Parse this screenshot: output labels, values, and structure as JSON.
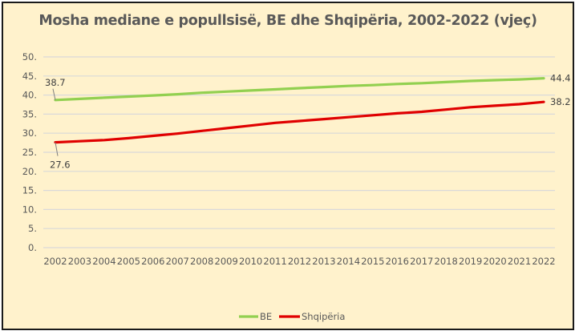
{
  "chart_data": {
    "type": "line",
    "title": "Mosha mediane e popullsisë, BE dhe Shqipëria, 2002-2022 (vjeç)",
    "xlabel": "",
    "ylabel": "",
    "ylim": [
      0,
      50
    ],
    "yticks": [
      0,
      5,
      10,
      15,
      20,
      25,
      30,
      35,
      40,
      45,
      50
    ],
    "ytick_labels": [
      "0.",
      "5.",
      "10.",
      "15.",
      "20.",
      "25.",
      "30.",
      "35.",
      "40.",
      "45.",
      "50."
    ],
    "grid": true,
    "legend_position": "bottom",
    "categories": [
      "2002",
      "2003",
      "2004",
      "2005",
      "2006",
      "2007",
      "2008",
      "2009",
      "2010",
      "2011",
      "2012",
      "2013",
      "2014",
      "2015",
      "2016",
      "2017",
      "2018",
      "2019",
      "2020",
      "2021",
      "2022"
    ],
    "series": [
      {
        "name": "BE",
        "color": "#92d050",
        "values": [
          38.7,
          39.0,
          39.3,
          39.6,
          39.9,
          40.2,
          40.6,
          40.9,
          41.2,
          41.5,
          41.8,
          42.1,
          42.4,
          42.6,
          42.9,
          43.1,
          43.4,
          43.7,
          43.9,
          44.1,
          44.4
        ],
        "labels": {
          "first": "38.7",
          "last": "44.4"
        }
      },
      {
        "name": "Shqipëria",
        "color": "#e00000",
        "values": [
          27.6,
          27.9,
          28.2,
          28.7,
          29.3,
          29.9,
          30.6,
          31.3,
          32.0,
          32.7,
          33.2,
          33.7,
          34.2,
          34.7,
          35.2,
          35.6,
          36.2,
          36.8,
          37.2,
          37.6,
          38.2
        ],
        "labels": {
          "first": "27.6",
          "last": "38.2"
        }
      }
    ]
  }
}
